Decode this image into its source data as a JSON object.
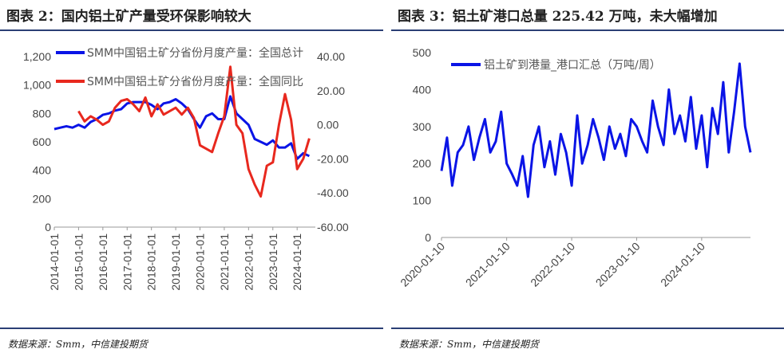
{
  "left": {
    "title": "图表 2：国内铝土矿产量受环保影响较大",
    "source": "数据来源：Smm，中信建投期货",
    "chart_data": {
      "type": "line",
      "legend_placement": "top",
      "series": [
        {
          "name": "SMM中国铝土矿分省份月度产量：全国总计",
          "axis": "left",
          "color": "#0a14e6",
          "x": [
            "2014-01",
            "2014-04",
            "2014-07",
            "2014-10",
            "2015-01",
            "2015-04",
            "2015-07",
            "2015-10",
            "2016-01",
            "2016-04",
            "2016-07",
            "2016-10",
            "2017-01",
            "2017-04",
            "2017-07",
            "2017-10",
            "2018-01",
            "2018-04",
            "2018-07",
            "2018-10",
            "2019-01",
            "2019-04",
            "2019-07",
            "2019-10",
            "2020-01",
            "2020-04",
            "2020-07",
            "2020-10",
            "2021-01",
            "2021-04",
            "2021-07",
            "2021-10",
            "2022-01",
            "2022-04",
            "2022-07",
            "2022-10",
            "2023-01",
            "2023-04",
            "2023-07",
            "2023-10",
            "2024-01",
            "2024-04",
            "2024-07"
          ],
          "values": [
            690,
            700,
            710,
            700,
            720,
            700,
            740,
            760,
            790,
            800,
            820,
            830,
            870,
            880,
            880,
            880,
            860,
            830,
            870,
            880,
            900,
            870,
            830,
            760,
            700,
            780,
            800,
            760,
            760,
            920,
            800,
            760,
            720,
            620,
            600,
            580,
            610,
            560,
            560,
            590,
            480,
            520,
            500
          ]
        },
        {
          "name": "SMM中国铝土矿分省份月度产量：全国同比",
          "axis": "right",
          "color": "#e8281e",
          "x": [
            "2015-01",
            "2015-04",
            "2015-07",
            "2015-10",
            "2016-01",
            "2016-04",
            "2016-07",
            "2016-10",
            "2017-01",
            "2017-04",
            "2017-07",
            "2017-10",
            "2018-01",
            "2018-04",
            "2018-07",
            "2018-10",
            "2019-01",
            "2019-04",
            "2019-07",
            "2019-10",
            "2020-01",
            "2020-04",
            "2020-07",
            "2020-10",
            "2021-01",
            "2021-04",
            "2021-07",
            "2021-10",
            "2022-01",
            "2022-04",
            "2022-07",
            "2022-10",
            "2023-01",
            "2023-04",
            "2023-07",
            "2023-10",
            "2024-01",
            "2024-04",
            "2024-07"
          ],
          "values": [
            8,
            2,
            5,
            3,
            0,
            2,
            10,
            14,
            15,
            12,
            8,
            16,
            5,
            12,
            6,
            8,
            10,
            6,
            10,
            4,
            -12,
            -14,
            -16,
            -5,
            5,
            34,
            0,
            -5,
            -26,
            -35,
            -42,
            -24,
            -22,
            0,
            18,
            3,
            -26,
            -20,
            -8
          ]
        }
      ],
      "y_left": {
        "ticks": [
          "0",
          "200",
          "400",
          "600",
          "800",
          "1,000",
          "1,200"
        ],
        "ylim": [
          0,
          1200
        ]
      },
      "y_right": {
        "ticks": [
          "-60.00",
          "-40.00",
          "-20.00",
          "0.00",
          "20.00",
          "40.00"
        ],
        "ylim": [
          -60,
          40
        ]
      },
      "x_ticks": [
        "2014-01-01",
        "2015-01-01",
        "2016-01-01",
        "2017-01-01",
        "2018-01-01",
        "2019-01-01",
        "2020-01-01",
        "2021-01-01",
        "2022-01-01",
        "2023-01-01",
        "2024-01-01"
      ],
      "xlim": [
        "2014-01",
        "2024-10"
      ]
    }
  },
  "right": {
    "title": "图表 3：铝土矿港口总量 225.42 万吨，未大幅增加",
    "source": "数据来源：Smm，中信建投期货",
    "chart_data": {
      "type": "line",
      "legend_placement": "top",
      "series": [
        {
          "name": "铝土矿到港量_港口汇总（万吨/周）",
          "color": "#0a14e6",
          "x": [
            "2020-01-10",
            "2020-02-10",
            "2020-03-10",
            "2020-04-10",
            "2020-05-10",
            "2020-06-10",
            "2020-07-10",
            "2020-08-10",
            "2020-09-10",
            "2020-10-10",
            "2020-11-10",
            "2020-12-10",
            "2021-01-10",
            "2021-02-10",
            "2021-03-10",
            "2021-04-10",
            "2021-05-10",
            "2021-06-10",
            "2021-07-10",
            "2021-08-10",
            "2021-09-10",
            "2021-10-10",
            "2021-11-10",
            "2021-12-10",
            "2022-01-10",
            "2022-02-10",
            "2022-03-10",
            "2022-04-10",
            "2022-05-10",
            "2022-06-10",
            "2022-07-10",
            "2022-08-10",
            "2022-09-10",
            "2022-10-10",
            "2022-11-10",
            "2022-12-10",
            "2023-01-10",
            "2023-02-10",
            "2023-03-10",
            "2023-04-10",
            "2023-05-10",
            "2023-06-10",
            "2023-07-10",
            "2023-08-10",
            "2023-09-10",
            "2023-10-10",
            "2023-11-10",
            "2023-12-10",
            "2024-01-10",
            "2024-02-10",
            "2024-03-10",
            "2024-04-10",
            "2024-05-10",
            "2024-06-10",
            "2024-07-10",
            "2024-08-10",
            "2024-09-10",
            "2024-10-10"
          ],
          "values": [
            180,
            270,
            140,
            230,
            250,
            300,
            210,
            270,
            320,
            230,
            260,
            340,
            200,
            170,
            140,
            220,
            110,
            250,
            300,
            190,
            260,
            170,
            280,
            230,
            140,
            330,
            200,
            250,
            320,
            270,
            210,
            300,
            240,
            280,
            220,
            320,
            300,
            260,
            230,
            370,
            300,
            250,
            400,
            280,
            330,
            260,
            380,
            240,
            330,
            190,
            350,
            280,
            420,
            230,
            340,
            470,
            300,
            230
          ]
        }
      ],
      "y": {
        "ticks": [
          "0",
          "100",
          "200",
          "300",
          "400",
          "500"
        ],
        "ylim": [
          0,
          500
        ]
      },
      "x_ticks": [
        "2020-01-10",
        "2021-01-10",
        "2022-01-10",
        "2023-01-10",
        "2024-01-10"
      ],
      "xlim": [
        "2020-01-10",
        "2024-10-10"
      ]
    }
  }
}
